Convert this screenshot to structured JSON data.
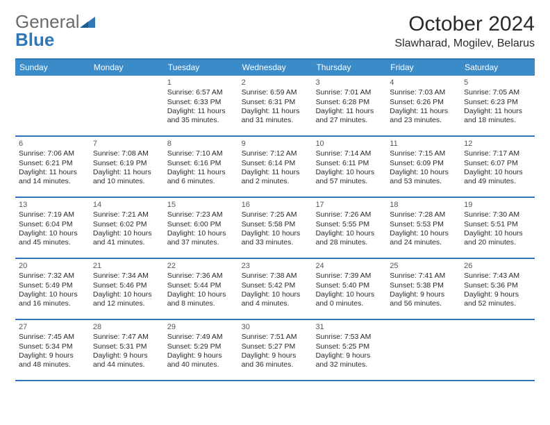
{
  "logo": {
    "general": "General",
    "blue": "Blue"
  },
  "title": "October 2024",
  "location": "Slawharad, Mogilev, Belarus",
  "colors": {
    "header_bg": "#3b8bc9",
    "border": "#2f77b6",
    "text": "#2a2a2a",
    "muted": "#555555",
    "logo_gray": "#6a6a6a",
    "logo_blue": "#2f77b6"
  },
  "weekdays": [
    "Sunday",
    "Monday",
    "Tuesday",
    "Wednesday",
    "Thursday",
    "Friday",
    "Saturday"
  ],
  "weeks": [
    [
      {
        "n": "",
        "sunrise": "",
        "sunset": "",
        "daylight": ""
      },
      {
        "n": "",
        "sunrise": "",
        "sunset": "",
        "daylight": ""
      },
      {
        "n": "1",
        "sunrise": "Sunrise: 6:57 AM",
        "sunset": "Sunset: 6:33 PM",
        "daylight": "Daylight: 11 hours and 35 minutes."
      },
      {
        "n": "2",
        "sunrise": "Sunrise: 6:59 AM",
        "sunset": "Sunset: 6:31 PM",
        "daylight": "Daylight: 11 hours and 31 minutes."
      },
      {
        "n": "3",
        "sunrise": "Sunrise: 7:01 AM",
        "sunset": "Sunset: 6:28 PM",
        "daylight": "Daylight: 11 hours and 27 minutes."
      },
      {
        "n": "4",
        "sunrise": "Sunrise: 7:03 AM",
        "sunset": "Sunset: 6:26 PM",
        "daylight": "Daylight: 11 hours and 23 minutes."
      },
      {
        "n": "5",
        "sunrise": "Sunrise: 7:05 AM",
        "sunset": "Sunset: 6:23 PM",
        "daylight": "Daylight: 11 hours and 18 minutes."
      }
    ],
    [
      {
        "n": "6",
        "sunrise": "Sunrise: 7:06 AM",
        "sunset": "Sunset: 6:21 PM",
        "daylight": "Daylight: 11 hours and 14 minutes."
      },
      {
        "n": "7",
        "sunrise": "Sunrise: 7:08 AM",
        "sunset": "Sunset: 6:19 PM",
        "daylight": "Daylight: 11 hours and 10 minutes."
      },
      {
        "n": "8",
        "sunrise": "Sunrise: 7:10 AM",
        "sunset": "Sunset: 6:16 PM",
        "daylight": "Daylight: 11 hours and 6 minutes."
      },
      {
        "n": "9",
        "sunrise": "Sunrise: 7:12 AM",
        "sunset": "Sunset: 6:14 PM",
        "daylight": "Daylight: 11 hours and 2 minutes."
      },
      {
        "n": "10",
        "sunrise": "Sunrise: 7:14 AM",
        "sunset": "Sunset: 6:11 PM",
        "daylight": "Daylight: 10 hours and 57 minutes."
      },
      {
        "n": "11",
        "sunrise": "Sunrise: 7:15 AM",
        "sunset": "Sunset: 6:09 PM",
        "daylight": "Daylight: 10 hours and 53 minutes."
      },
      {
        "n": "12",
        "sunrise": "Sunrise: 7:17 AM",
        "sunset": "Sunset: 6:07 PM",
        "daylight": "Daylight: 10 hours and 49 minutes."
      }
    ],
    [
      {
        "n": "13",
        "sunrise": "Sunrise: 7:19 AM",
        "sunset": "Sunset: 6:04 PM",
        "daylight": "Daylight: 10 hours and 45 minutes."
      },
      {
        "n": "14",
        "sunrise": "Sunrise: 7:21 AM",
        "sunset": "Sunset: 6:02 PM",
        "daylight": "Daylight: 10 hours and 41 minutes."
      },
      {
        "n": "15",
        "sunrise": "Sunrise: 7:23 AM",
        "sunset": "Sunset: 6:00 PM",
        "daylight": "Daylight: 10 hours and 37 minutes."
      },
      {
        "n": "16",
        "sunrise": "Sunrise: 7:25 AM",
        "sunset": "Sunset: 5:58 PM",
        "daylight": "Daylight: 10 hours and 33 minutes."
      },
      {
        "n": "17",
        "sunrise": "Sunrise: 7:26 AM",
        "sunset": "Sunset: 5:55 PM",
        "daylight": "Daylight: 10 hours and 28 minutes."
      },
      {
        "n": "18",
        "sunrise": "Sunrise: 7:28 AM",
        "sunset": "Sunset: 5:53 PM",
        "daylight": "Daylight: 10 hours and 24 minutes."
      },
      {
        "n": "19",
        "sunrise": "Sunrise: 7:30 AM",
        "sunset": "Sunset: 5:51 PM",
        "daylight": "Daylight: 10 hours and 20 minutes."
      }
    ],
    [
      {
        "n": "20",
        "sunrise": "Sunrise: 7:32 AM",
        "sunset": "Sunset: 5:49 PM",
        "daylight": "Daylight: 10 hours and 16 minutes."
      },
      {
        "n": "21",
        "sunrise": "Sunrise: 7:34 AM",
        "sunset": "Sunset: 5:46 PM",
        "daylight": "Daylight: 10 hours and 12 minutes."
      },
      {
        "n": "22",
        "sunrise": "Sunrise: 7:36 AM",
        "sunset": "Sunset: 5:44 PM",
        "daylight": "Daylight: 10 hours and 8 minutes."
      },
      {
        "n": "23",
        "sunrise": "Sunrise: 7:38 AM",
        "sunset": "Sunset: 5:42 PM",
        "daylight": "Daylight: 10 hours and 4 minutes."
      },
      {
        "n": "24",
        "sunrise": "Sunrise: 7:39 AM",
        "sunset": "Sunset: 5:40 PM",
        "daylight": "Daylight: 10 hours and 0 minutes."
      },
      {
        "n": "25",
        "sunrise": "Sunrise: 7:41 AM",
        "sunset": "Sunset: 5:38 PM",
        "daylight": "Daylight: 9 hours and 56 minutes."
      },
      {
        "n": "26",
        "sunrise": "Sunrise: 7:43 AM",
        "sunset": "Sunset: 5:36 PM",
        "daylight": "Daylight: 9 hours and 52 minutes."
      }
    ],
    [
      {
        "n": "27",
        "sunrise": "Sunrise: 7:45 AM",
        "sunset": "Sunset: 5:34 PM",
        "daylight": "Daylight: 9 hours and 48 minutes."
      },
      {
        "n": "28",
        "sunrise": "Sunrise: 7:47 AM",
        "sunset": "Sunset: 5:31 PM",
        "daylight": "Daylight: 9 hours and 44 minutes."
      },
      {
        "n": "29",
        "sunrise": "Sunrise: 7:49 AM",
        "sunset": "Sunset: 5:29 PM",
        "daylight": "Daylight: 9 hours and 40 minutes."
      },
      {
        "n": "30",
        "sunrise": "Sunrise: 7:51 AM",
        "sunset": "Sunset: 5:27 PM",
        "daylight": "Daylight: 9 hours and 36 minutes."
      },
      {
        "n": "31",
        "sunrise": "Sunrise: 7:53 AM",
        "sunset": "Sunset: 5:25 PM",
        "daylight": "Daylight: 9 hours and 32 minutes."
      },
      {
        "n": "",
        "sunrise": "",
        "sunset": "",
        "daylight": ""
      },
      {
        "n": "",
        "sunrise": "",
        "sunset": "",
        "daylight": ""
      }
    ]
  ]
}
